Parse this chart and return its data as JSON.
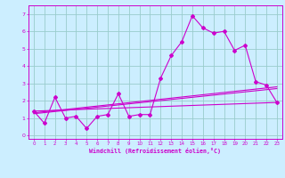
{
  "x_values": [
    0,
    1,
    2,
    3,
    4,
    5,
    6,
    7,
    8,
    9,
    10,
    11,
    12,
    13,
    14,
    15,
    16,
    17,
    18,
    19,
    20,
    21,
    22,
    23
  ],
  "line1": [
    1.4,
    0.7,
    2.2,
    1.0,
    1.1,
    0.4,
    1.1,
    1.2,
    2.4,
    1.1,
    1.2,
    1.2,
    3.3,
    4.6,
    5.4,
    6.9,
    6.2,
    5.9,
    6.0,
    4.9,
    5.2,
    3.1,
    2.9,
    1.9
  ],
  "line_flat": [
    [
      0,
      23
    ],
    [
      1.4,
      1.9
    ]
  ],
  "line_trend1": [
    [
      0,
      23
    ],
    [
      1.3,
      2.8
    ]
  ],
  "line_trend2": [
    [
      0,
      23
    ],
    [
      1.25,
      2.7
    ]
  ],
  "background_color": "#cceeff",
  "grid_color": "#99cccc",
  "line_color": "#cc00cc",
  "xlabel": "Windchill (Refroidissement éolien,°C)",
  "ylim": [
    -0.2,
    7.5
  ],
  "xlim": [
    -0.5,
    23.5
  ],
  "yticks": [
    0,
    1,
    2,
    3,
    4,
    5,
    6,
    7
  ],
  "xticks": [
    0,
    1,
    2,
    3,
    4,
    5,
    6,
    7,
    8,
    9,
    10,
    11,
    12,
    13,
    14,
    15,
    16,
    17,
    18,
    19,
    20,
    21,
    22,
    23
  ]
}
